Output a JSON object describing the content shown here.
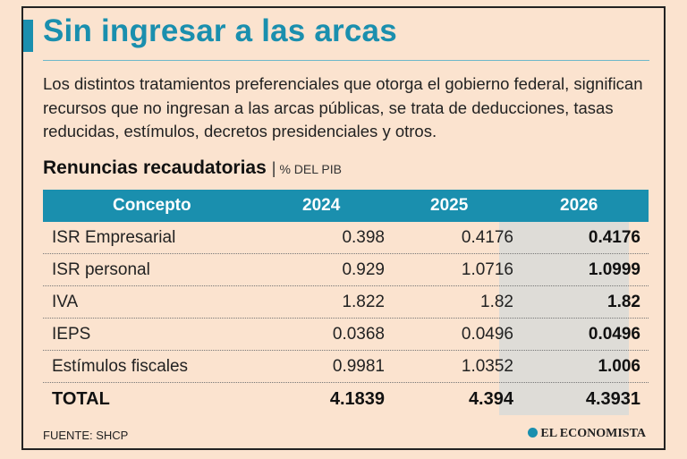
{
  "title": "Sin ingresar a las arcas",
  "intro": "Los distintos tratamientos preferenciales que otorga el gobierno federal, significan recursos que no ingresan a las arcas públicas, se trata de deducciones, tasas reducidas, estímulos, decretos presidenciales y otros.",
  "subtitle": "Renuncias recaudatorias",
  "unit": "% DEL PIB",
  "table": {
    "headers": [
      "Concepto",
      "2024",
      "2025",
      "2026"
    ],
    "rows": [
      {
        "concept": "ISR Empresarial",
        "v2024": "0.398",
        "v2025": "0.4176",
        "v2026": "0.4176"
      },
      {
        "concept": "ISR personal",
        "v2024": "0.929",
        "v2025": "1.0716",
        "v2026": "1.0999"
      },
      {
        "concept": "IVA",
        "v2024": "1.822",
        "v2025": "1.82",
        "v2026": "1.82"
      },
      {
        "concept": "IEPS",
        "v2024": "0.0368",
        "v2025": "0.0496",
        "v2026": "0.0496"
      },
      {
        "concept": "Estímulos fiscales",
        "v2024": "0.9981",
        "v2025": "1.0352",
        "v2026": "1.006"
      }
    ],
    "total": {
      "concept": "TOTAL",
      "v2024": "4.1839",
      "v2025": "4.394",
      "v2026": "4.3931"
    }
  },
  "source": "FUENTE: SHCP",
  "brand": "EL ECONOMISTA",
  "colors": {
    "accent": "#1a8fae",
    "background": "#fbe3cf",
    "highlight": "#dedcd7"
  }
}
